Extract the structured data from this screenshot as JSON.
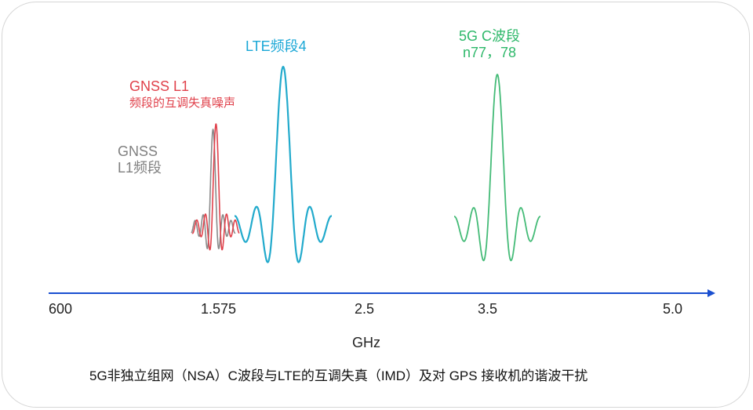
{
  "bands": {
    "gnss_imd_line1": "GNSS L1",
    "gnss_imd_line2": "频段的互调失真噪声",
    "gnss_line1": "GNSS",
    "gnss_line2": "L1频段",
    "lte": "LTE频段4",
    "nr_line1": "5G C波段",
    "nr_line2": "n77，78"
  },
  "axis": {
    "ticks": [
      "600",
      "1.575",
      "2.5",
      "3.5",
      "5.0"
    ],
    "label": "GHz"
  },
  "caption": "5G非独立组网（NSA）C波段与LTE的互调失真（IMD）及对 GPS 接收机的谐波干扰",
  "colors": {
    "lte": "#22aacc",
    "nr": "#44bb77",
    "gnss_imd": "#e0414b",
    "gnss": "#8a8a8a",
    "axis": "#1a4fd0"
  }
}
